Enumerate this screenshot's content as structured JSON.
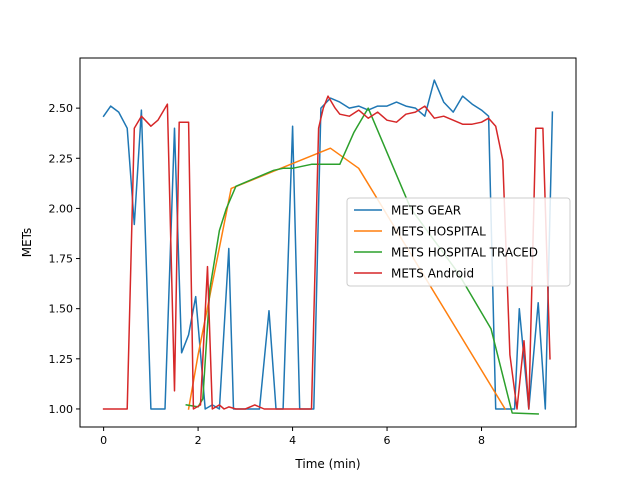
{
  "chart_data": {
    "type": "line",
    "title": "",
    "xlabel": "Time (min)",
    "ylabel": "METs",
    "xlim": [
      -0.5,
      10.0
    ],
    "ylim": [
      0.91,
      2.75
    ],
    "xticks": [
      0,
      2,
      4,
      6,
      8
    ],
    "xtick_labels": [
      "0",
      "2",
      "4",
      "6",
      "8"
    ],
    "yticks": [
      1.0,
      1.25,
      1.5,
      1.75,
      2.0,
      2.25,
      2.5
    ],
    "ytick_labels": [
      "1.00",
      "1.25",
      "1.50",
      "1.75",
      "2.00",
      "2.25",
      "2.50"
    ],
    "grid": false,
    "legend_position": "center-right",
    "series": [
      {
        "name": "METS GEAR",
        "color": "#1f77b4",
        "x": [
          0,
          0.15,
          0.32,
          0.5,
          0.65,
          0.8,
          1.0,
          1.3,
          1.5,
          1.65,
          1.8,
          1.95,
          2.15,
          2.3,
          2.45,
          2.65,
          2.75,
          2.9,
          3.1,
          3.3,
          3.5,
          3.65,
          3.8,
          4.0,
          4.15,
          4.3,
          4.45,
          4.6,
          4.8,
          5.0,
          5.2,
          5.4,
          5.6,
          5.8,
          6.0,
          6.2,
          6.4,
          6.6,
          6.8,
          7.0,
          7.2,
          7.4,
          7.6,
          7.8,
          8.0,
          8.15,
          8.3,
          8.5,
          8.7,
          8.8,
          9.0,
          9.2,
          9.35,
          9.5
        ],
        "y": [
          2.46,
          2.51,
          2.48,
          2.4,
          1.92,
          2.49,
          1.0,
          1.0,
          2.4,
          1.28,
          1.37,
          1.56,
          1.0,
          1.02,
          1.0,
          1.8,
          1.0,
          1.0,
          1.0,
          1.0,
          1.49,
          1.0,
          1.0,
          2.41,
          1.0,
          1.0,
          1.0,
          2.5,
          2.55,
          2.53,
          2.5,
          2.51,
          2.49,
          2.51,
          2.51,
          2.53,
          2.51,
          2.5,
          2.46,
          2.64,
          2.53,
          2.48,
          2.56,
          2.52,
          2.49,
          2.46,
          1.0,
          1.0,
          1.0,
          1.5,
          1.0,
          1.53,
          1.0,
          2.48
        ]
      },
      {
        "name": "METS HOSPITAL",
        "color": "#ff7f0e",
        "x": [
          1.8,
          2.0,
          2.7,
          4.8,
          5.4,
          8.5
        ],
        "y": [
          1.0,
          1.27,
          2.1,
          2.3,
          2.2,
          1.0
        ]
      },
      {
        "name": "METS HOSPITAL TRACED",
        "color": "#2ca02c",
        "x": [
          1.75,
          2.0,
          2.1,
          2.25,
          2.45,
          2.6,
          2.8,
          3.0,
          3.2,
          3.4,
          3.6,
          3.8,
          4.0,
          4.2,
          4.4,
          4.6,
          4.8,
          5.0,
          5.3,
          5.6,
          6.5,
          7.5,
          8.2,
          8.65,
          9.2
        ],
        "y": [
          1.02,
          1.01,
          1.05,
          1.6,
          1.89,
          2.0,
          2.11,
          2.13,
          2.15,
          2.17,
          2.19,
          2.2,
          2.2,
          2.21,
          2.22,
          2.22,
          2.22,
          2.22,
          2.38,
          2.5,
          2.0,
          1.68,
          1.4,
          0.98,
          0.975
        ]
      },
      {
        "name": "METS Android",
        "color": "#d62728",
        "x": [
          0,
          0.25,
          0.5,
          0.65,
          0.8,
          1.0,
          1.15,
          1.35,
          1.5,
          1.6,
          1.65,
          1.8,
          1.9,
          2.05,
          2.2,
          2.3,
          2.45,
          2.55,
          2.65,
          2.8,
          3.0,
          3.2,
          3.4,
          3.6,
          3.8,
          4.0,
          4.2,
          4.4,
          4.55,
          4.65,
          4.75,
          4.9,
          5.0,
          5.2,
          5.4,
          5.6,
          5.8,
          6.0,
          6.2,
          6.4,
          6.6,
          6.8,
          7.0,
          7.2,
          7.4,
          7.6,
          7.8,
          8.0,
          8.15,
          8.3,
          8.45,
          8.6,
          8.75,
          8.9,
          9.0,
          9.15,
          9.3,
          9.45
        ],
        "y": [
          1.0,
          1.0,
          1.0,
          2.4,
          2.46,
          2.41,
          2.44,
          2.52,
          1.09,
          2.43,
          2.43,
          2.43,
          1.0,
          1.02,
          1.71,
          1.0,
          1.02,
          1.0,
          1.01,
          1.0,
          1.0,
          1.02,
          1.0,
          1.0,
          1.0,
          1.0,
          1.0,
          1.0,
          2.4,
          2.5,
          2.56,
          2.5,
          2.47,
          2.46,
          2.49,
          2.45,
          2.48,
          2.44,
          2.43,
          2.47,
          2.48,
          2.51,
          2.45,
          2.46,
          2.44,
          2.42,
          2.42,
          2.43,
          2.45,
          2.41,
          2.24,
          1.27,
          1.0,
          1.34,
          1.0,
          2.4,
          2.4,
          1.25
        ]
      }
    ]
  }
}
